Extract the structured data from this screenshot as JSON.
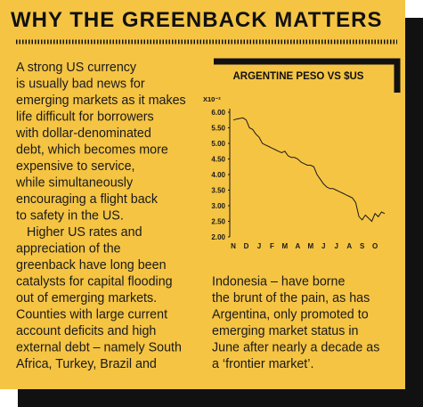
{
  "header": {
    "title": "WHY THE GREENBACK MATTERS"
  },
  "body": {
    "paragraphs": [
      [
        "A strong US currency",
        "is usually bad news for",
        "emerging markets as it makes",
        "life difficult for borrowers",
        "with dollar-denominated",
        "debt, which becomes more",
        "expensive to service,",
        "while simultaneously",
        "encouraging a flight back",
        "to safety in the US."
      ],
      [
        "Higher US rates and",
        "appreciation of the",
        "greenback have long been",
        "catalysts for capital flooding",
        "out of emerging markets.",
        "Counties with large current",
        "account deficits and high",
        "external debt – namely South",
        "Africa, Turkey, Brazil and"
      ]
    ],
    "continuation": [
      "Indonesia – have borne",
      "the brunt of the pain, as has",
      "Argentina, only promoted to",
      "emerging market status in",
      "June after nearly a decade as",
      "a ‘frontier market’."
    ]
  },
  "chart_data": {
    "type": "line",
    "title": "ARGENTINE PESO VS $US",
    "y_label": "X10⁻²",
    "categories": [
      "N",
      null,
      null,
      null,
      "D",
      null,
      null,
      null,
      "J",
      null,
      null,
      null,
      "F",
      null,
      null,
      null,
      "M",
      null,
      null,
      null,
      "A",
      null,
      null,
      null,
      "M",
      null,
      null,
      null,
      "J",
      null,
      null,
      null,
      "J",
      null,
      null,
      null,
      "A",
      null,
      null,
      null,
      "S",
      null,
      null,
      null,
      "O",
      null,
      null,
      null
    ],
    "values": [
      5.75,
      5.78,
      5.8,
      5.82,
      5.75,
      5.5,
      5.45,
      5.3,
      5.2,
      5.0,
      4.95,
      4.9,
      4.85,
      4.8,
      4.75,
      4.7,
      4.75,
      4.6,
      4.55,
      4.55,
      4.5,
      4.4,
      4.35,
      4.3,
      4.3,
      4.25,
      4.0,
      3.85,
      3.7,
      3.6,
      3.55,
      3.55,
      3.5,
      3.45,
      3.4,
      3.35,
      3.3,
      3.25,
      3.1,
      2.65,
      2.55,
      2.7,
      2.6,
      2.5,
      2.75,
      2.65,
      2.8,
      2.75
    ],
    "color": "#1a1a1a",
    "ylim": [
      2,
      6
    ],
    "yticks": [
      {
        "value": 2,
        "label": "2.00"
      },
      {
        "value": 2.5,
        "label": "2.50"
      },
      {
        "value": 3,
        "label": "3.00"
      },
      {
        "value": 3.5,
        "label": "3.50"
      },
      {
        "value": 4,
        "label": "4.00"
      },
      {
        "value": 4.5,
        "label": "4.50"
      },
      {
        "value": 5,
        "label": "5.00"
      },
      {
        "value": 5.5,
        "label": "5.50"
      },
      {
        "value": 6,
        "label": "6.00"
      }
    ]
  }
}
